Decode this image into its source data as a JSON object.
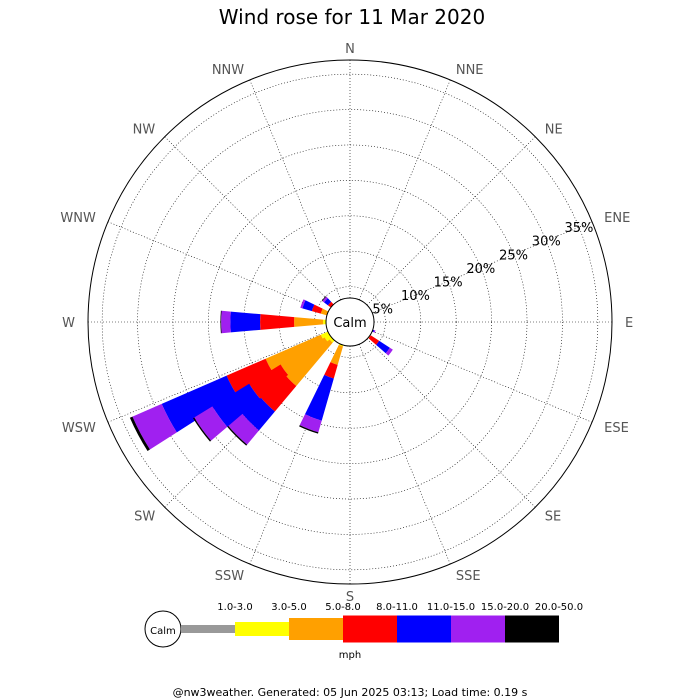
{
  "chart_data": {
    "type": "wind-rose",
    "title": "Wind rose for 11 Mar 2020",
    "directions": [
      "N",
      "NNE",
      "NE",
      "ENE",
      "E",
      "ESE",
      "SE",
      "SSE",
      "S",
      "SSW",
      "SW",
      "WSW",
      "W",
      "WNW",
      "NW",
      "NNW"
    ],
    "ring_labels": [
      "5%",
      "10%",
      "15%",
      "20%",
      "25%",
      "30%",
      "35%"
    ],
    "ring_values": [
      5,
      10,
      15,
      20,
      25,
      30,
      35
    ],
    "rmax": 37,
    "calm_label": "Calm",
    "unit": "mph",
    "speed_bins": [
      {
        "label": "1.0-3.0",
        "color": "#999999"
      },
      {
        "label": "3.0-5.0",
        "color": "#ffff00"
      },
      {
        "label": "5.0-8.0",
        "color": "#ffa000"
      },
      {
        "label": "8.0-11.0",
        "color": "#ff0000"
      },
      {
        "label": "11.0-15.0",
        "color": "#0000ff"
      },
      {
        "label": "15.0-20.0",
        "color": "#a020f0"
      },
      {
        "label": "20.0-50.0",
        "color": "#000000"
      }
    ],
    "series": [
      {
        "direction": "SSE",
        "cumulative": [
          2.0,
          2.6,
          3.0,
          3.4,
          3.6,
          3.8,
          3.8
        ]
      },
      {
        "direction": "S",
        "cumulative": [
          2.0,
          3.0,
          3.5,
          4.9,
          6.7,
          7.2,
          7.2
        ]
      },
      {
        "direction": "SSW",
        "cumulative": [
          2.0,
          3.6,
          6.3,
          8.3,
          14.5,
          16.2,
          16.4
        ]
      },
      {
        "direction": "SW",
        "cumulative": [
          2.0,
          3.8,
          11.8,
          16.5,
          20.0,
          22.6,
          22.8
        ]
      },
      {
        "direction": "WSW",
        "cumulative": [
          2.0,
          4.5,
          13.0,
          19.0,
          29.0,
          33.5,
          33.9
        ]
      },
      {
        "direction": "WSW2",
        "cumulative": [
          2.0,
          4.2,
          11.5,
          16.7,
          22.8,
          25.8,
          26.0
        ]
      },
      {
        "direction": "W",
        "cumulative": [
          2.0,
          3.8,
          7.9,
          12.7,
          16.9,
          18.2,
          18.3
        ]
      },
      {
        "direction": "WNW2",
        "cumulative": [
          2.0,
          3.0,
          4.3,
          5.6,
          7.0,
          7.3,
          7.3
        ]
      },
      {
        "direction": "NW",
        "cumulative": [
          2.0,
          2.6,
          3.3,
          3.9,
          4.6,
          4.9,
          5.0
        ]
      }
    ]
  },
  "footer": "@nw3weather. Generated: 05 Jun 2025 03:13; Load time: 0.19 s"
}
